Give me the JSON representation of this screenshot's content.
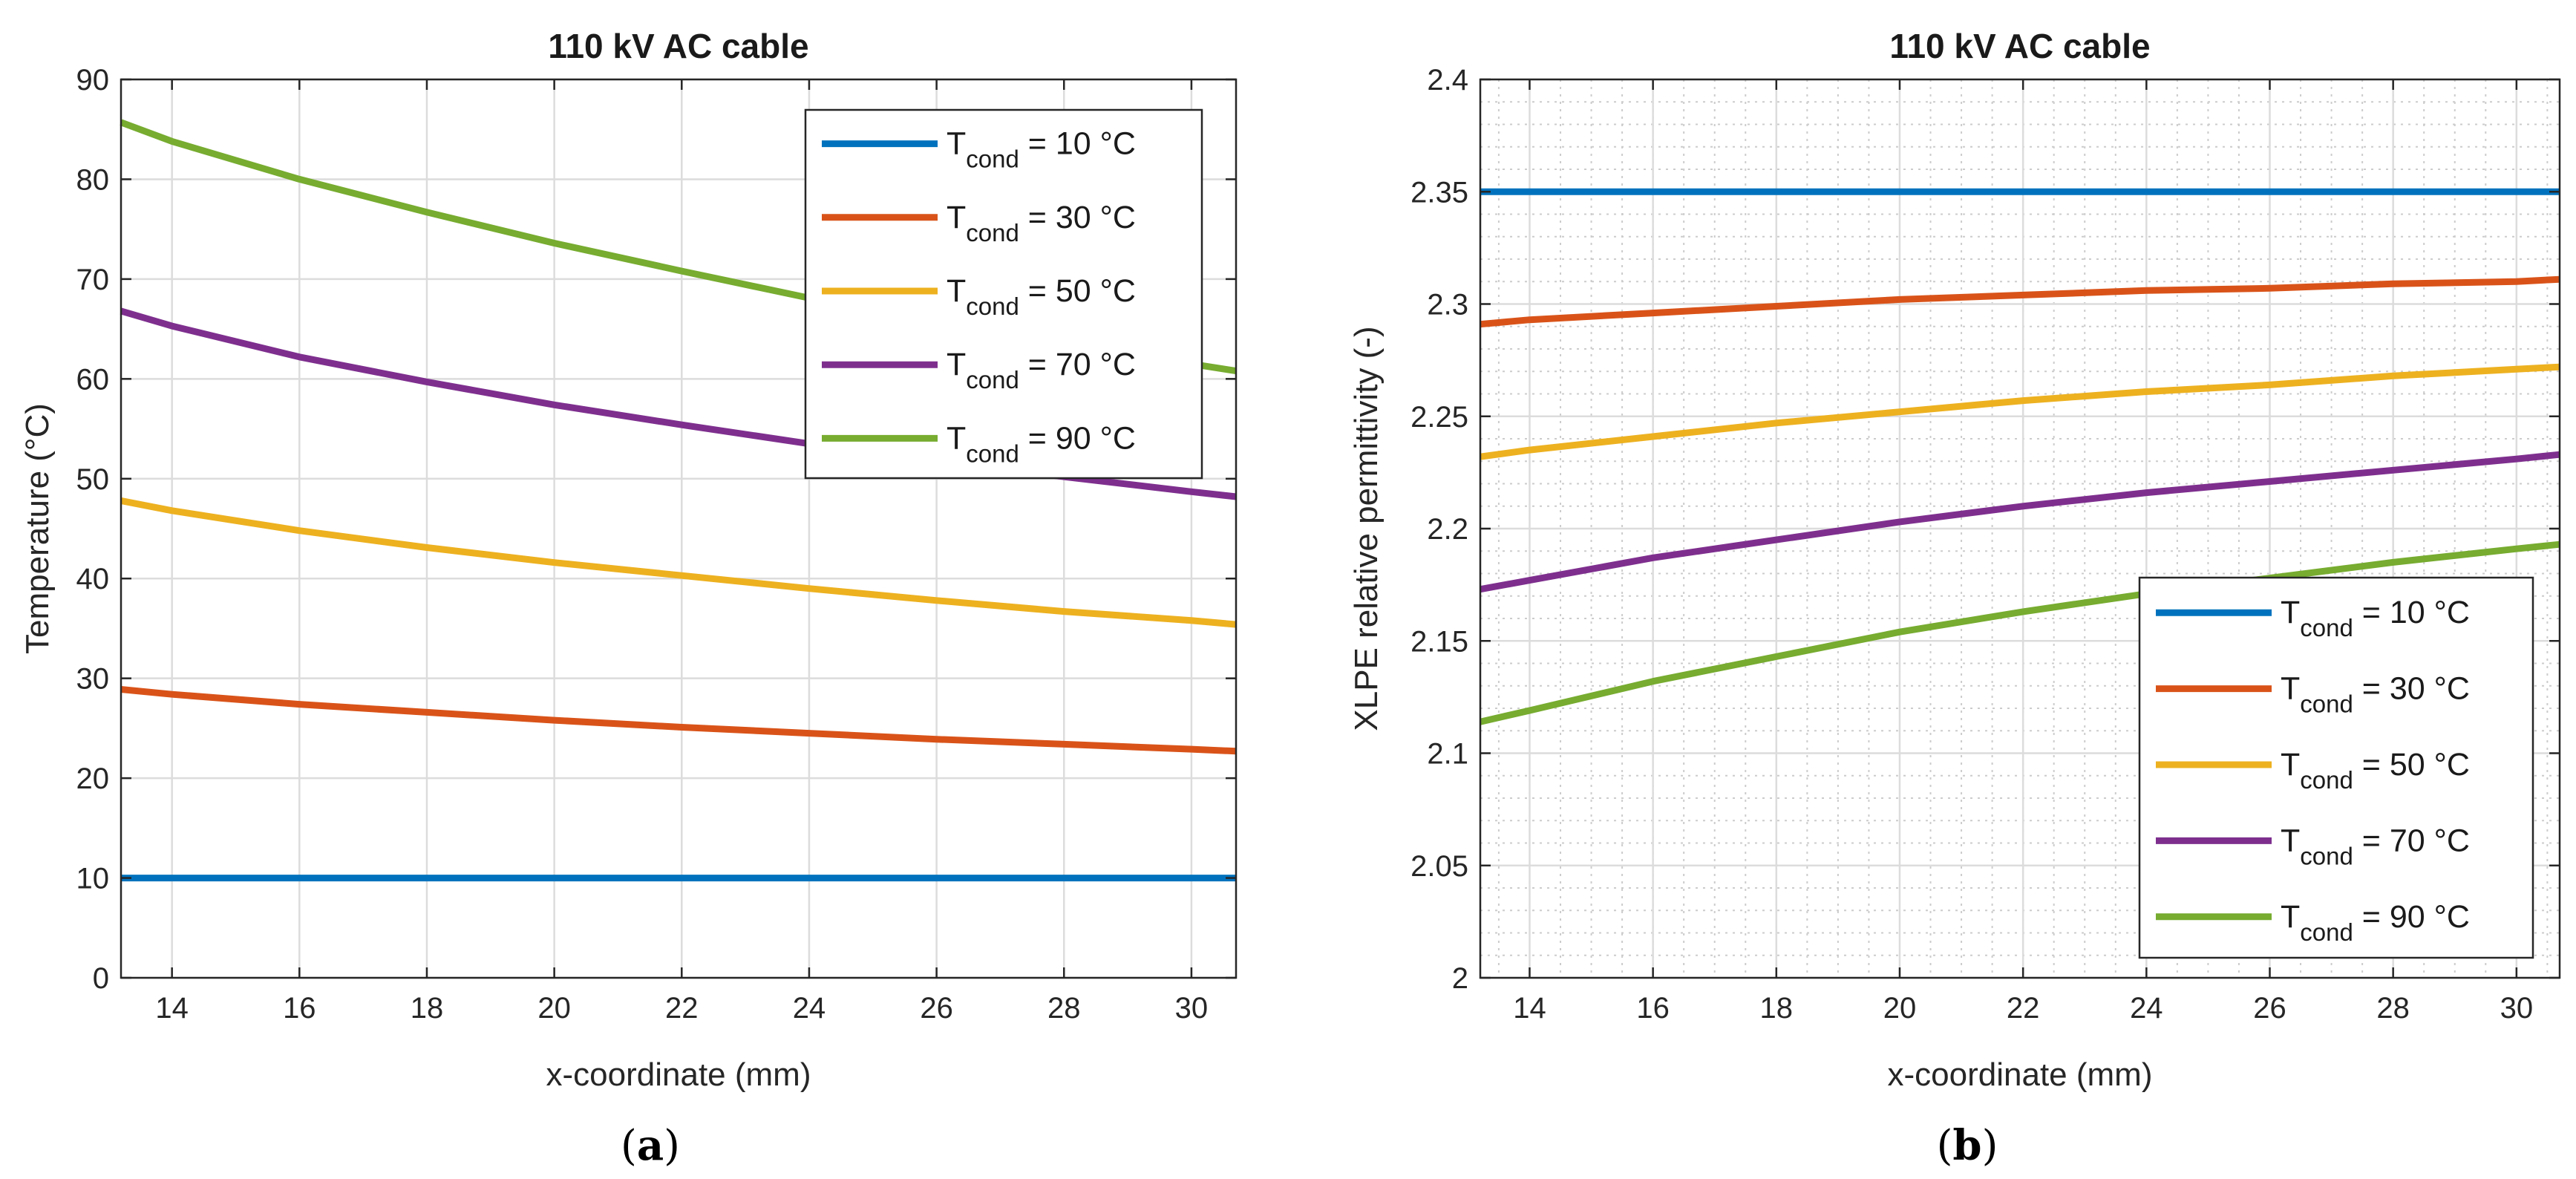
{
  "colors": {
    "blue": "#0072BD",
    "red": "#D95319",
    "yellow": "#EDB120",
    "purple": "#7E2F8E",
    "green": "#77AC30"
  },
  "captions": [
    "a",
    "b"
  ],
  "chart_data": [
    {
      "type": "line",
      "title": "110 kV AC cable",
      "xlabel": "x-coordinate (mm)",
      "ylabel": "Temperature (°C)",
      "xlim": [
        13.2,
        30.7
      ],
      "ylim": [
        0,
        90
      ],
      "xticks": [
        14,
        16,
        18,
        20,
        22,
        24,
        26,
        28,
        30
      ],
      "yticks": [
        0,
        10,
        20,
        30,
        40,
        50,
        60,
        70,
        80,
        90
      ],
      "grid": true,
      "minor_grid": false,
      "legend_position": "top-right",
      "x": [
        13.2,
        14,
        16,
        18,
        20,
        22,
        24,
        26,
        28,
        30,
        30.7
      ],
      "series": [
        {
          "name": "T",
          "sub": "cond",
          "suffix": " = 10 °C",
          "color": "#0072BD",
          "values": [
            10,
            10,
            10,
            10,
            10,
            10,
            10,
            10,
            10,
            10,
            10
          ]
        },
        {
          "name": "T",
          "sub": "cond",
          "suffix": " = 30 °C",
          "color": "#D95319",
          "values": [
            28.9,
            28.4,
            27.4,
            26.6,
            25.8,
            25.1,
            24.5,
            23.9,
            23.4,
            22.9,
            22.7
          ]
        },
        {
          "name": "T",
          "sub": "cond",
          "suffix": " = 50 °C",
          "color": "#EDB120",
          "values": [
            47.8,
            46.8,
            44.8,
            43.1,
            41.6,
            40.3,
            39.0,
            37.8,
            36.7,
            35.8,
            35.4
          ]
        },
        {
          "name": "T",
          "sub": "cond",
          "suffix": " = 70 °C",
          "color": "#7E2F8E",
          "values": [
            66.8,
            65.3,
            62.2,
            59.7,
            57.4,
            55.4,
            53.5,
            51.8,
            50.2,
            48.7,
            48.2
          ]
        },
        {
          "name": "T",
          "sub": "cond",
          "suffix": " = 90 °C",
          "color": "#77AC30",
          "values": [
            85.7,
            83.8,
            80.0,
            76.7,
            73.6,
            70.8,
            68.1,
            65.8,
            63.6,
            61.5,
            60.8
          ]
        }
      ]
    },
    {
      "type": "line",
      "title": "110 kV AC cable",
      "xlabel": "x-coordinate (mm)",
      "ylabel": "XLPE relative permittivity (-)",
      "xlim": [
        13.2,
        30.7
      ],
      "ylim": [
        2,
        2.4
      ],
      "xticks": [
        14,
        16,
        18,
        20,
        22,
        24,
        26,
        28,
        30
      ],
      "yticks": [
        2,
        2.05,
        2.1,
        2.15,
        2.2,
        2.25,
        2.3,
        2.35,
        2.4
      ],
      "grid": true,
      "minor_grid": true,
      "legend_position": "bottom-right",
      "x": [
        13.2,
        14,
        16,
        18,
        20,
        22,
        24,
        26,
        28,
        30,
        30.7
      ],
      "series": [
        {
          "name": "T",
          "sub": "cond",
          "suffix": " = 10 °C",
          "color": "#0072BD",
          "values": [
            2.35,
            2.35,
            2.35,
            2.35,
            2.35,
            2.35,
            2.35,
            2.35,
            2.35,
            2.35,
            2.35
          ]
        },
        {
          "name": "T",
          "sub": "cond",
          "suffix": " = 30 °C",
          "color": "#D95319",
          "values": [
            2.291,
            2.293,
            2.296,
            2.299,
            2.302,
            2.304,
            2.306,
            2.307,
            2.309,
            2.31,
            2.311
          ]
        },
        {
          "name": "T",
          "sub": "cond",
          "suffix": " = 50 °C",
          "color": "#EDB120",
          "values": [
            2.232,
            2.235,
            2.241,
            2.247,
            2.252,
            2.257,
            2.261,
            2.264,
            2.268,
            2.271,
            2.272
          ]
        },
        {
          "name": "T",
          "sub": "cond",
          "suffix": " = 70 °C",
          "color": "#7E2F8E",
          "values": [
            2.173,
            2.177,
            2.187,
            2.195,
            2.203,
            2.21,
            2.216,
            2.221,
            2.226,
            2.231,
            2.233
          ]
        },
        {
          "name": "T",
          "sub": "cond",
          "suffix": " = 90 °C",
          "color": "#77AC30",
          "values": [
            2.114,
            2.119,
            2.132,
            2.143,
            2.154,
            2.163,
            2.171,
            2.178,
            2.185,
            2.191,
            2.193
          ]
        }
      ]
    }
  ]
}
